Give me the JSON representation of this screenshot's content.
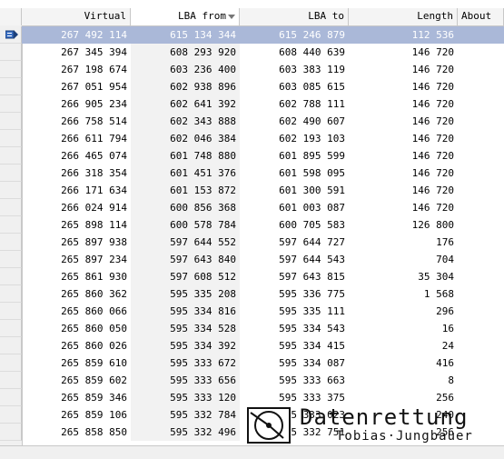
{
  "columns": [
    "",
    "Virtual",
    "LBA from",
    "LBA to",
    "Length",
    "About"
  ],
  "sorted_column": "LBA from",
  "rows": [
    {
      "virtual": "267 492 114",
      "lba_from": "615 134 344",
      "lba_to": "615 246 879",
      "length": "112 536"
    },
    {
      "virtual": "267 345 394",
      "lba_from": "608 293 920",
      "lba_to": "608 440 639",
      "length": "146 720"
    },
    {
      "virtual": "267 198 674",
      "lba_from": "603 236 400",
      "lba_to": "603 383 119",
      "length": "146 720"
    },
    {
      "virtual": "267 051 954",
      "lba_from": "602 938 896",
      "lba_to": "603 085 615",
      "length": "146 720"
    },
    {
      "virtual": "266 905 234",
      "lba_from": "602 641 392",
      "lba_to": "602 788 111",
      "length": "146 720"
    },
    {
      "virtual": "266 758 514",
      "lba_from": "602 343 888",
      "lba_to": "602 490 607",
      "length": "146 720"
    },
    {
      "virtual": "266 611 794",
      "lba_from": "602 046 384",
      "lba_to": "602 193 103",
      "length": "146 720"
    },
    {
      "virtual": "266 465 074",
      "lba_from": "601 748 880",
      "lba_to": "601 895 599",
      "length": "146 720"
    },
    {
      "virtual": "266 318 354",
      "lba_from": "601 451 376",
      "lba_to": "601 598 095",
      "length": "146 720"
    },
    {
      "virtual": "266 171 634",
      "lba_from": "601 153 872",
      "lba_to": "601 300 591",
      "length": "146 720"
    },
    {
      "virtual": "266 024 914",
      "lba_from": "600 856 368",
      "lba_to": "601 003 087",
      "length": "146 720"
    },
    {
      "virtual": "265 898 114",
      "lba_from": "600 578 784",
      "lba_to": "600 705 583",
      "length": "126 800"
    },
    {
      "virtual": "265 897 938",
      "lba_from": "597 644 552",
      "lba_to": "597 644 727",
      "length": "176"
    },
    {
      "virtual": "265 897 234",
      "lba_from": "597 643 840",
      "lba_to": "597 644 543",
      "length": "704"
    },
    {
      "virtual": "265 861 930",
      "lba_from": "597 608 512",
      "lba_to": "597 643 815",
      "length": "35 304"
    },
    {
      "virtual": "265 860 362",
      "lba_from": "595 335 208",
      "lba_to": "595 336 775",
      "length": "1 568"
    },
    {
      "virtual": "265 860 066",
      "lba_from": "595 334 816",
      "lba_to": "595 335 111",
      "length": "296"
    },
    {
      "virtual": "265 860 050",
      "lba_from": "595 334 528",
      "lba_to": "595 334 543",
      "length": "16"
    },
    {
      "virtual": "265 860 026",
      "lba_from": "595 334 392",
      "lba_to": "595 334 415",
      "length": "24"
    },
    {
      "virtual": "265 859 610",
      "lba_from": "595 333 672",
      "lba_to": "595 334 087",
      "length": "416"
    },
    {
      "virtual": "265 859 602",
      "lba_from": "595 333 656",
      "lba_to": "595 333 663",
      "length": "8"
    },
    {
      "virtual": "265 859 346",
      "lba_from": "595 333 120",
      "lba_to": "595 333 375",
      "length": "256"
    },
    {
      "virtual": "265 859 106",
      "lba_from": "595 332 784",
      "lba_to": "595 333 023",
      "length": "240"
    },
    {
      "virtual": "265 858 850",
      "lba_from": "595 332 496",
      "lba_to": "595 332 751",
      "length": "256"
    }
  ],
  "selected_row": 0,
  "watermark": {
    "title": "Datenrettung",
    "subtitle": "Tobias·Jungbauer"
  },
  "colors": {
    "selection": "#aab8d8",
    "header": "#f4f4f4",
    "sorted_column_bg": "#f2f2f2"
  },
  "icons": {
    "current_row_indicator": "row-pointer-icon",
    "sort_indicator": "sort-desc-icon",
    "logo": "disk-platter-logo"
  }
}
